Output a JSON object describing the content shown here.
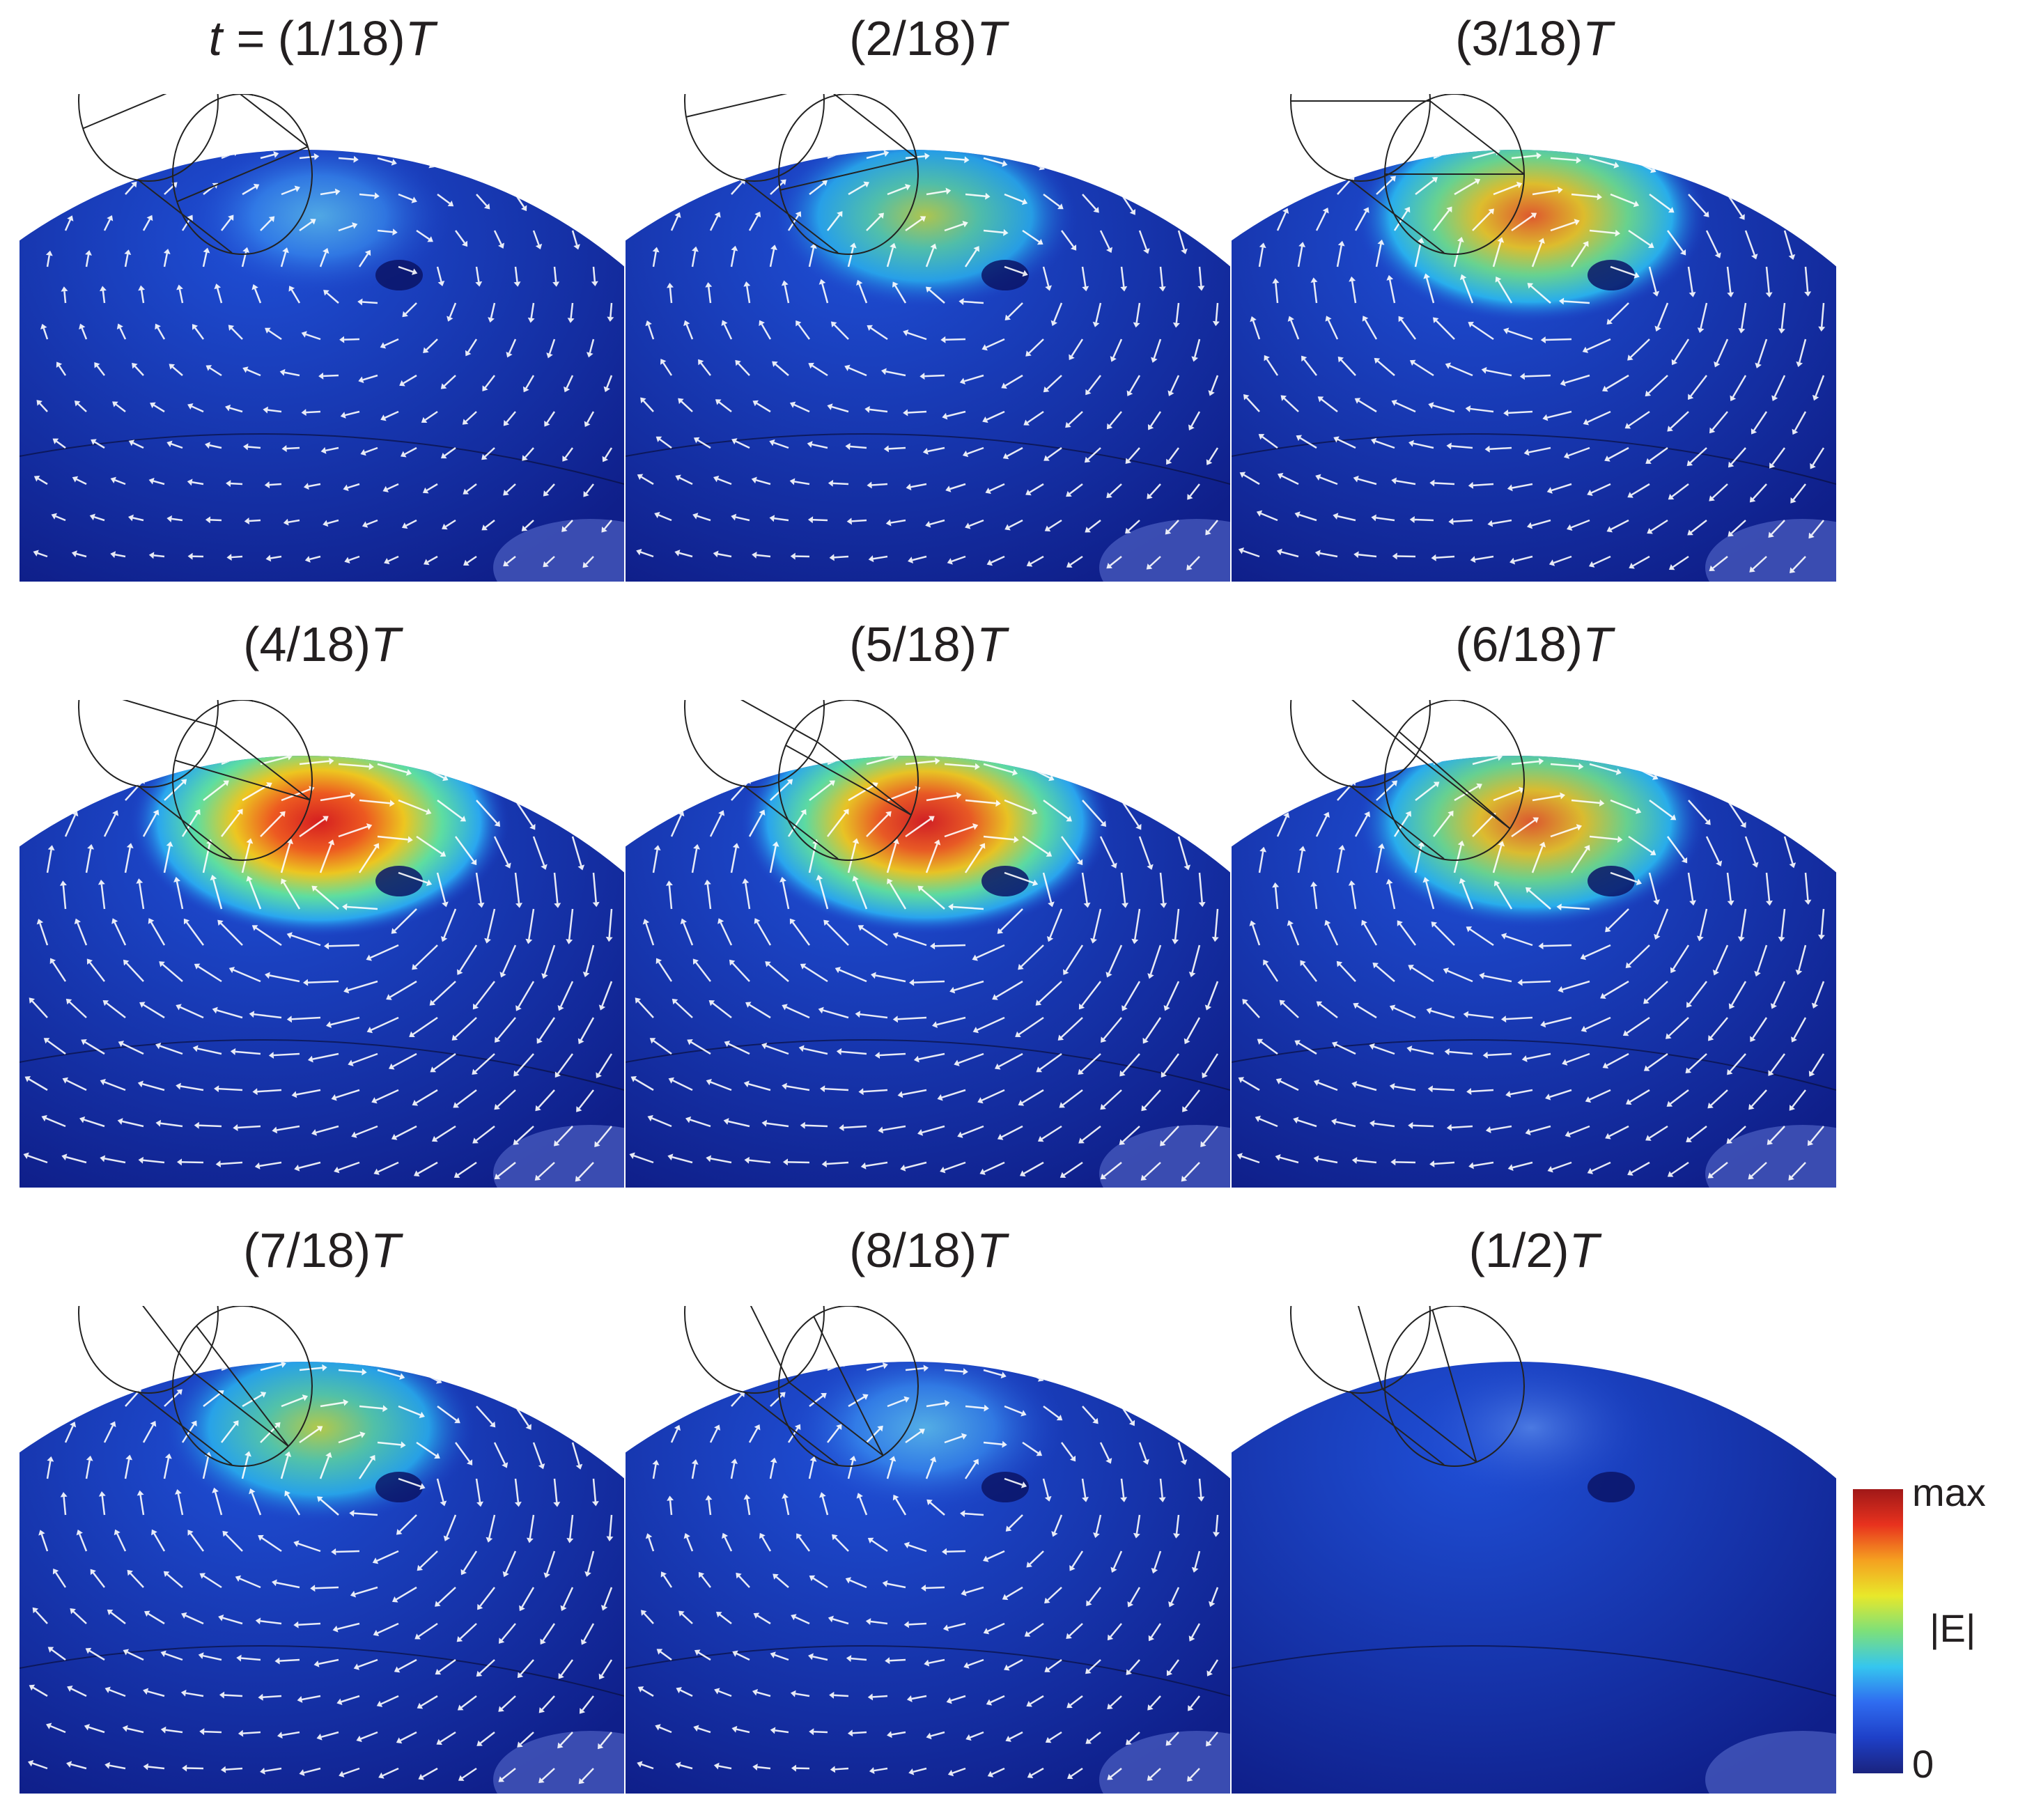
{
  "panels": [
    {
      "title_prefix": "t = ",
      "title_main": "(1/18)",
      "title_suffix": "T",
      "intensity": 0.32,
      "arrow_strength": 0.35,
      "tilt": 0.0
    },
    {
      "title_prefix": "",
      "title_main": "(2/18)",
      "title_suffix": "T",
      "intensity": 0.55,
      "arrow_strength": 0.55,
      "tilt": 0.15
    },
    {
      "title_prefix": "",
      "title_main": "(3/18)",
      "title_suffix": "T",
      "intensity": 0.82,
      "arrow_strength": 0.8,
      "tilt": 0.35
    },
    {
      "title_prefix": "",
      "title_main": "(4/18)",
      "title_suffix": "T",
      "intensity": 0.97,
      "arrow_strength": 1.0,
      "tilt": 0.6
    },
    {
      "title_prefix": "",
      "title_main": "(5/18)",
      "title_suffix": "T",
      "intensity": 0.92,
      "arrow_strength": 1.0,
      "tilt": 0.8
    },
    {
      "title_prefix": "",
      "title_main": "(6/18)",
      "title_suffix": "T",
      "intensity": 0.8,
      "arrow_strength": 0.9,
      "tilt": 1.0
    },
    {
      "title_prefix": "",
      "title_main": "(7/18)",
      "title_suffix": "T",
      "intensity": 0.6,
      "arrow_strength": 0.7,
      "tilt": 1.2
    },
    {
      "title_prefix": "",
      "title_main": "(8/18)",
      "title_suffix": "T",
      "intensity": 0.4,
      "arrow_strength": 0.5,
      "tilt": 1.4
    },
    {
      "title_prefix": "",
      "title_main": "(1/2)",
      "title_suffix": "T",
      "intensity": 0.2,
      "arrow_strength": 0.0,
      "tilt": 1.6
    }
  ],
  "colorbar": {
    "max_label": "max",
    "min_label": "0",
    "quantity_label": "|E|",
    "colors": [
      "#1a237e",
      "#1e40c8",
      "#2f6cf0",
      "#35c6ef",
      "#7de07a",
      "#e8e82a",
      "#f5a020",
      "#e8321e",
      "#a01818"
    ]
  }
}
